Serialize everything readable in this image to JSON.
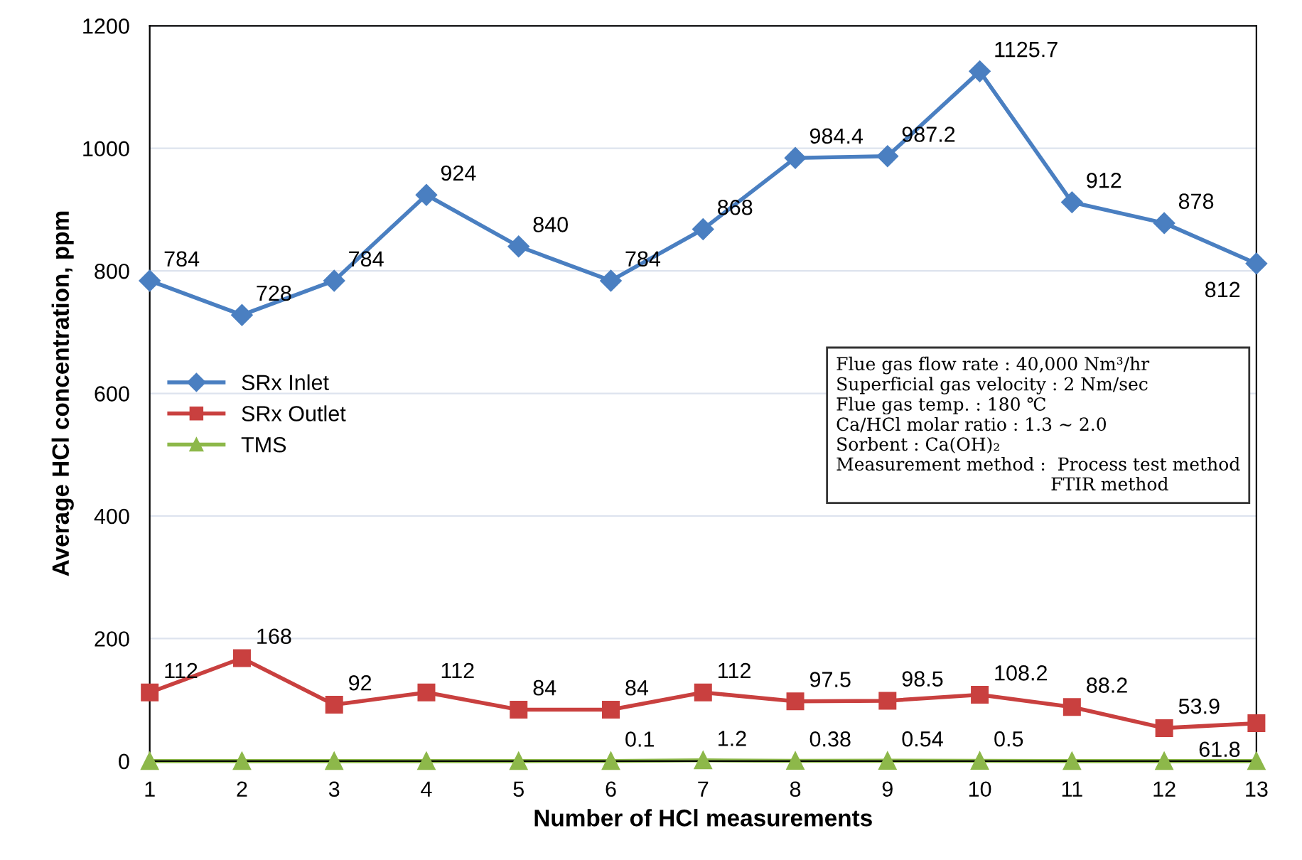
{
  "chart_data": {
    "type": "line",
    "xlabel": "Number of HCl measurements",
    "ylabel": "Average HCl concentration, ppm",
    "x": [
      1,
      2,
      3,
      4,
      5,
      6,
      7,
      8,
      9,
      10,
      11,
      12,
      13
    ],
    "series": [
      {
        "name": "SRx Inlet",
        "color": "#4a7fc1",
        "marker": "diamond",
        "values": [
          784,
          728,
          784,
          924,
          840,
          784,
          868,
          984.4,
          987.2,
          1125.7,
          912,
          878,
          812
        ],
        "value_labels": [
          "784",
          "728",
          "784",
          "924",
          "840",
          "784",
          "868",
          "984.4",
          "987.2",
          "1125.7",
          "912",
          "878",
          "812"
        ]
      },
      {
        "name": "SRx Outlet",
        "color": "#c9403f",
        "marker": "square",
        "values": [
          112,
          168,
          92,
          112,
          84,
          84,
          112,
          97.5,
          98.5,
          108.2,
          88.2,
          53.9,
          61.8
        ],
        "value_labels": [
          "112",
          "168",
          "92",
          "112",
          "84",
          "84",
          "112",
          "97.5",
          "98.5",
          "108.2",
          "88.2",
          "53.9",
          "61.8"
        ]
      },
      {
        "name": "TMS",
        "color": "#8db84a",
        "marker": "triangle",
        "values": [
          0,
          0,
          0,
          0,
          0,
          0.1,
          1.2,
          0.38,
          0.54,
          0.5,
          0,
          0,
          0
        ],
        "value_labels": [
          null,
          null,
          null,
          null,
          null,
          "0.1",
          "1.2",
          "0.38",
          "0.54",
          "0.5",
          null,
          null,
          null
        ]
      }
    ],
    "xlim": [
      1,
      13
    ],
    "xticks": [
      1,
      2,
      3,
      4,
      5,
      6,
      7,
      8,
      9,
      10,
      11,
      12,
      13
    ],
    "ylim": [
      0,
      1200
    ],
    "yticks": [
      0,
      200,
      400,
      600,
      800,
      1000,
      1200
    ],
    "grid": "y",
    "legend": "left",
    "line_style": "solid",
    "annotations": [
      "Flue gas flow rate : 40,000 Nm³/hr\nSuperficial gas velocity : 2 Nm/sec\nFlue gas temp. : 180 ℃\nCa/HCl molar ratio : 1.3 ~ 2.0\nSorbent : Ca(OH)₂\nMeasurement method :  Process test method\n                                      FTIR method"
    ]
  }
}
